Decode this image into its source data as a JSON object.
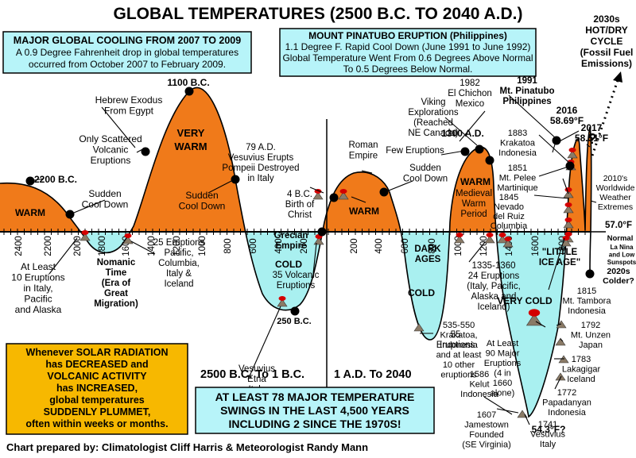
{
  "title": "GLOBAL TEMPERATURES (2500 B.C. TO 2040 A.D.)",
  "credit": "Chart prepared by: Climatologist Cliff Harris & Meteorologist Randy Mann",
  "colors": {
    "warm": "#f07a1a",
    "cold": "#a9f0f0",
    "title": "#1a1ad0",
    "red": "#d40000",
    "box_blue": "#b7f4f9",
    "box_yellow": "#f7b800"
  },
  "boxes": {
    "cooling": {
      "title": "MAJOR GLOBAL COOLING FROM 2007 TO 2009",
      "lines": [
        "A 0.9 Degree Fahrenheit drop in global temperatures",
        "occurred from October 2007 to February 2009."
      ]
    },
    "pinatubo": {
      "title": "MOUNT PINATUBO ERUPTION (Philippines)",
      "lines": [
        "1.1 Degree F. Rapid Cool Down (June 1991 to June 1992)",
        "Global Temperature Went From 0.6 Degrees Above Normal",
        "To 0.5 Degrees Below Normal."
      ]
    },
    "solar": {
      "lines": [
        "Whenever SOLAR RADIATION",
        "has DECREASED and",
        "VOLCANIC ACTIVITY",
        "has INCREASED,",
        "global temperatures",
        "SUDDENLY PLUMMET,",
        "often within weeks or months."
      ]
    },
    "swings": {
      "lines": [
        "AT LEAST 78 MAJOR TEMPERATURE",
        "SWINGS IN THE LAST 4,500 YEARS",
        "INCLUDING 2 SINCE THE 1970S!"
      ]
    },
    "cycle": {
      "lines": [
        "2030s",
        "HOT/DRY",
        "CYCLE",
        "(Fossil Fuel",
        "Emissions)"
      ]
    }
  },
  "chart_data": {
    "type": "area",
    "xlabel_left": "2500 B.C. To 1 B.C.",
    "xlabel_right": "1 A.D. To 2040",
    "ticks_bc": [
      "2400",
      "2200",
      "2000",
      "1800",
      "1600",
      "1400",
      "1200",
      "1000",
      "800",
      "600",
      "400",
      "200"
    ],
    "ticks_ad": [
      "200",
      "400",
      "600",
      "800",
      "1000",
      "1200",
      "1400",
      "1600",
      "1800"
    ],
    "region_labels": [
      {
        "text": "WARM",
        "color": "#000"
      },
      {
        "text": "VERY",
        "color": "#000"
      },
      {
        "text": "WARM",
        "color": "#000"
      },
      {
        "text": "WARM",
        "color": "#000"
      },
      {
        "text": "WARM",
        "color": "#000"
      },
      {
        "text": "COLD",
        "color": "#000"
      },
      {
        "text": "COLD",
        "color": "#000"
      },
      {
        "text": "VERY COLD",
        "color": "#000"
      }
    ],
    "annotations": [
      {
        "lines": [
          "2200 B.C."
        ],
        "bold": true
      },
      {
        "lines": [
          "Sudden",
          "Cool Down"
        ]
      },
      {
        "lines": [
          "Hebrew Exodus",
          "From Egypt"
        ]
      },
      {
        "lines": [
          "1100 B.C."
        ],
        "bold": true
      },
      {
        "lines": [
          "Only Scattered",
          "Volcanic",
          "Eruptions"
        ]
      },
      {
        "lines": [
          "Sudden",
          "Cool Down"
        ]
      },
      {
        "lines": [
          "79 A.D.",
          "Vesuvius Erupts",
          "Pompeii Destroyed",
          "in Italy"
        ]
      },
      {
        "lines": [
          "4 B.C.",
          "Birth of",
          "Christ"
        ]
      },
      {
        "lines": [
          "Roman",
          "Empire"
        ]
      },
      {
        "lines": [
          "Sudden",
          "Cool Down"
        ]
      },
      {
        "lines": [
          "Few Eruptions"
        ]
      },
      {
        "lines": [
          "Viking",
          "Explorations",
          "(Reached",
          "NE Canada)"
        ]
      },
      {
        "lines": [
          "1300 A.D."
        ],
        "bold": true
      },
      {
        "lines": [
          "Medieval",
          "Warm",
          "Period"
        ]
      },
      {
        "lines": [
          "1982",
          "El Chichon",
          "Mexico"
        ]
      },
      {
        "lines": [
          "1991",
          "Mt. Pinatubo",
          "Philippines"
        ],
        "bold": true
      },
      {
        "lines": [
          "2016",
          "58.69°F"
        ],
        "bold": true
      },
      {
        "lines": [
          "2017",
          "58.51°F"
        ],
        "bold": true
      },
      {
        "lines": [
          "1883",
          "Krakatoa",
          "Indonesia"
        ]
      },
      {
        "lines": [
          "1851",
          "Mt. Pelee",
          "Martinique"
        ]
      },
      {
        "lines": [
          "1845",
          "Nevado",
          "del Ruiz",
          "Columbia"
        ]
      },
      {
        "lines": [
          "2010's",
          "Worldwide",
          "Weather",
          "Extremes"
        ]
      },
      {
        "lines": [
          "57.0°F"
        ],
        "bold": true
      },
      {
        "lines": [
          "Normal"
        ],
        "bold": true
      },
      {
        "lines": [
          "La Nina",
          "and Low",
          "Sunspots"
        ],
        "bold": true
      },
      {
        "lines": [
          "2020s",
          "Colder?"
        ],
        "bold": true
      },
      {
        "lines": [
          "At Least",
          "10 Eruptions",
          "in Italy,",
          "Pacific",
          "and Alaska"
        ]
      },
      {
        "lines": [
          "Nomanic",
          "Time",
          "(Era of",
          "Great",
          "Migration)"
        ],
        "bold": true
      },
      {
        "lines": [
          "25 Eruptions",
          "Pacific,",
          "Columbia,",
          "Italy &",
          "Iceland"
        ]
      },
      {
        "lines": [
          "Grecian",
          "Empire"
        ],
        "bold": true
      },
      {
        "lines": [
          "Vesuvius",
          "Etna",
          "Italy"
        ]
      },
      {
        "lines": [
          "250 B.C."
        ],
        "bold": true
      },
      {
        "lines": [
          "35 Volcanic",
          "Eruptions"
        ]
      },
      {
        "lines": [
          "DARK",
          "AGES"
        ],
        "bold": true
      },
      {
        "lines": [
          "535-550",
          "Krakatoa,",
          "Indonesia",
          "and at least",
          "10 other",
          "eruptions"
        ]
      },
      {
        "lines": [
          "55",
          "Eruptions"
        ]
      },
      {
        "lines": [
          "1335-1360",
          "24 Eruptions",
          "(Italy, Pacific,",
          "Alaska and",
          "Iceland)"
        ]
      },
      {
        "lines": [
          "\"LITTLE",
          "ICE AGE\""
        ],
        "bold": true
      },
      {
        "lines": [
          "At Least",
          "90 Major",
          "Eruptions",
          "(4 in",
          "1660",
          "alone)"
        ]
      },
      {
        "lines": [
          "1815",
          "Mt. Tambora",
          "Indonesia"
        ]
      },
      {
        "lines": [
          "1792",
          "Mt. Unzen",
          "Japan"
        ]
      },
      {
        "lines": [
          "1783",
          "Lakagigar",
          "Iceland"
        ]
      },
      {
        "lines": [
          "1772",
          "Papadanyan",
          "Indonesia"
        ]
      },
      {
        "lines": [
          "1741",
          "Vesuvius",
          "Italy"
        ]
      },
      {
        "lines": [
          "1586",
          "Kelut",
          "Indonesia"
        ]
      },
      {
        "lines": [
          "1607",
          "Jamestown",
          "Founded",
          "(SE Virginia)"
        ]
      },
      {
        "lines": [
          "54.3°F?"
        ],
        "bold": true
      },
      {
        "lines": [
          "?"
        ],
        "bold": true
      }
    ]
  }
}
